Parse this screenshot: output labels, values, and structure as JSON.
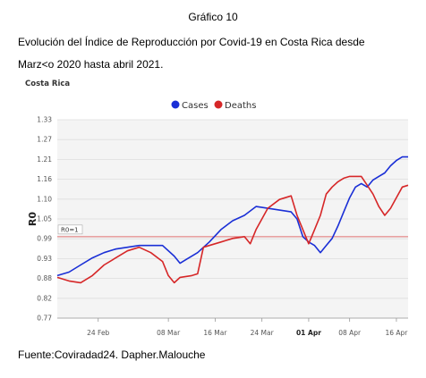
{
  "document": {
    "heading": "Gráfico 10",
    "subtitle_line1": "Evolución del Índice de Reproducción por Covid-19 en Costa Rica desde",
    "subtitle_line2": "Marz<o 2020 hasta abril 2021.",
    "source": "Fuente:Coviradad24.  Dapher.Malouche"
  },
  "colors": {
    "cases": "#1a2fd6",
    "deaths": "#d62728",
    "reference": "#e07070",
    "grid": "#dddddd",
    "plot_bg": "#f4f4f4"
  },
  "chart_data": {
    "type": "line",
    "title": "Costa Rica",
    "ylabel": "R0",
    "xlabel": "",
    "ylim": [
      0.77,
      1.33
    ],
    "y_ticks": [
      "1.33",
      "1.27",
      "1.21",
      "1.16",
      "1.10",
      "1.05",
      "0.99",
      "0.93",
      "0.88",
      "0.82",
      "0.77"
    ],
    "x_ticks": [
      {
        "label": "24 Feb",
        "x": 7,
        "bold": false
      },
      {
        "label": "08 Mar",
        "x": 19,
        "bold": false
      },
      {
        "label": "16 Mar",
        "x": 27,
        "bold": false
      },
      {
        "label": "24 Mar",
        "x": 35,
        "bold": false
      },
      {
        "label": "01 Apr",
        "x": 43,
        "bold": true
      },
      {
        "label": "08 Apr",
        "x": 50,
        "bold": false
      },
      {
        "label": "16 Apr",
        "x": 58,
        "bold": false
      }
    ],
    "x_range": [
      0,
      60
    ],
    "legend_position": "top",
    "reference_line": {
      "label": "R0=1",
      "value": 1.0
    },
    "series": [
      {
        "name": "Cases",
        "color_key": "cases",
        "x": [
          0,
          2,
          4,
          6,
          8,
          10,
          12,
          14,
          16,
          18,
          20,
          21,
          22,
          24,
          26,
          28,
          30,
          32,
          34,
          36,
          38,
          40,
          41,
          42,
          43,
          44,
          45,
          46,
          47,
          48,
          49,
          50,
          51,
          52,
          53,
          54,
          55,
          56,
          57,
          58,
          59,
          60
        ],
        "y": [
          0.89,
          0.9,
          0.92,
          0.94,
          0.955,
          0.965,
          0.97,
          0.975,
          0.975,
          0.975,
          0.945,
          0.925,
          0.935,
          0.955,
          0.985,
          1.02,
          1.045,
          1.06,
          1.085,
          1.08,
          1.075,
          1.07,
          1.05,
          1.0,
          0.985,
          0.975,
          0.955,
          0.975,
          0.995,
          1.03,
          1.07,
          1.11,
          1.14,
          1.15,
          1.14,
          1.16,
          1.17,
          1.18,
          1.2,
          1.215,
          1.225,
          1.225
        ]
      },
      {
        "name": "Deaths",
        "color_key": "deaths",
        "x": [
          0,
          2,
          4,
          6,
          7,
          8,
          10,
          12,
          14,
          16,
          18,
          19,
          20,
          21,
          23,
          24,
          25,
          26,
          28,
          30,
          32,
          33,
          34,
          36,
          38,
          40,
          41,
          42,
          43,
          44,
          45,
          46,
          47,
          48,
          49,
          50,
          51,
          52,
          53,
          54,
          55,
          56,
          57,
          58,
          59,
          60
        ],
        "y": [
          0.885,
          0.875,
          0.87,
          0.89,
          0.905,
          0.92,
          0.94,
          0.96,
          0.97,
          0.955,
          0.93,
          0.89,
          0.87,
          0.885,
          0.89,
          0.895,
          0.97,
          0.975,
          0.985,
          0.995,
          1.0,
          0.98,
          1.02,
          1.08,
          1.105,
          1.115,
          1.06,
          1.02,
          0.98,
          1.02,
          1.06,
          1.12,
          1.14,
          1.155,
          1.165,
          1.17,
          1.17,
          1.17,
          1.145,
          1.12,
          1.085,
          1.06,
          1.08,
          1.11,
          1.14,
          1.145
        ]
      }
    ]
  }
}
